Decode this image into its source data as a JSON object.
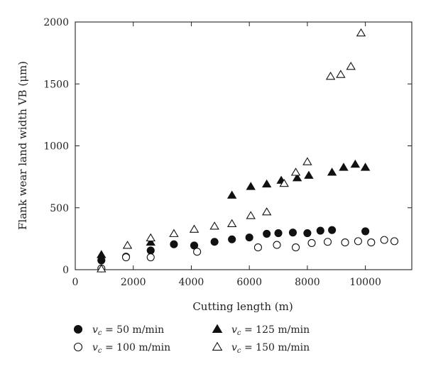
{
  "chart_data": {
    "type": "scatter",
    "xlabel": "Cutting length (m)",
    "ylabel": "Flank wear  land width VB (μm)",
    "xlim": [
      0,
      11600
    ],
    "ylim": [
      0,
      2000
    ],
    "xticks": [
      0,
      2000,
      4000,
      6000,
      8000,
      10000
    ],
    "yticks": [
      0,
      500,
      1000,
      1500,
      2000
    ],
    "grid": false,
    "legend_position": "bottom",
    "series": [
      {
        "name": "v_c = 50 m/min",
        "legend_label": {
          "symbol": "v",
          "subscript": "c",
          "rest": " = 50 m/min"
        },
        "marker": "filled-circle",
        "x": [
          900,
          1750,
          2600,
          3400,
          4100,
          4800,
          5400,
          6000,
          6600,
          7000,
          7500,
          8000,
          8450,
          8850,
          10000
        ],
        "y": [
          75,
          105,
          155,
          205,
          195,
          225,
          245,
          260,
          290,
          295,
          300,
          295,
          315,
          320,
          310
        ]
      },
      {
        "name": "v_c = 100 m/min",
        "legend_label": {
          "symbol": "v",
          "subscript": "c",
          "rest": " = 100 m/min"
        },
        "marker": "open-circle",
        "x": [
          900,
          1750,
          2600,
          4200,
          6300,
          6950,
          7600,
          8150,
          8700,
          9300,
          9750,
          10200,
          10650,
          11000
        ],
        "y": [
          10,
          100,
          100,
          145,
          180,
          200,
          180,
          215,
          225,
          220,
          230,
          220,
          240,
          230
        ]
      },
      {
        "name": "v_c = 125 m/min",
        "legend_label": {
          "symbol": "v",
          "subscript": "c",
          "rest": " = 125 m/min"
        },
        "marker": "filled-triangle",
        "x": [
          900,
          2600,
          5400,
          6050,
          6600,
          7100,
          7650,
          8050,
          8850,
          9250,
          9650,
          10000
        ],
        "y": [
          120,
          220,
          600,
          670,
          690,
          720,
          740,
          760,
          785,
          825,
          850,
          825
        ]
      },
      {
        "name": "v_c = 150 m/min",
        "legend_label": {
          "symbol": "v",
          "subscript": "c",
          "rest": " = 150 m/min"
        },
        "marker": "open-triangle",
        "x": [
          900,
          1800,
          2600,
          3400,
          4100,
          4800,
          5400,
          6050,
          6600,
          7200,
          7600,
          8000,
          8800,
          9150,
          9500,
          9850
        ],
        "y": [
          5,
          195,
          255,
          290,
          325,
          350,
          370,
          435,
          465,
          695,
          785,
          870,
          1560,
          1575,
          1640,
          1910
        ]
      }
    ]
  }
}
